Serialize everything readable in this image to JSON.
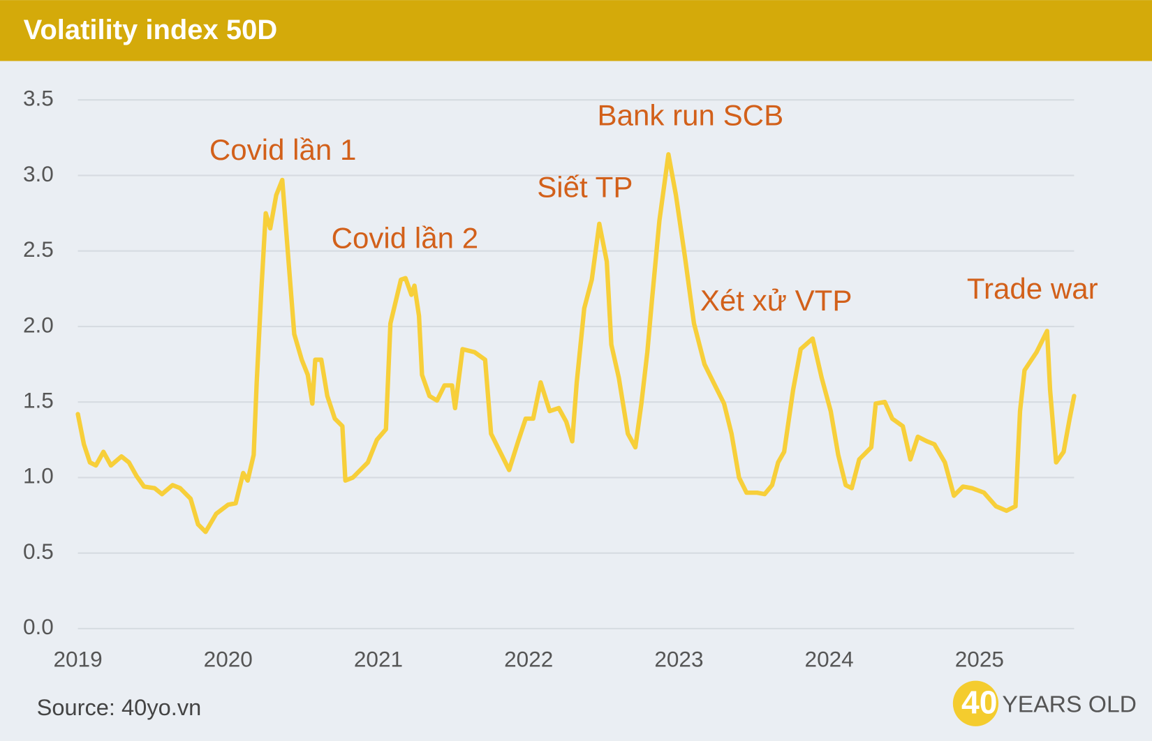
{
  "chart_data": {
    "type": "line",
    "title": "Volatility index 50D",
    "source": "Source: 40yo.vn",
    "logo": {
      "number": "40",
      "text": "YEARS OLD"
    },
    "color": "#f7cf3a",
    "grid": true,
    "annotations": [
      "Covid lần 1",
      "Covid lần 2",
      "Siết TP",
      "Bank run SCB",
      "Xét xử VTP",
      "Trade war"
    ],
    "xlim": [
      2019,
      2025.63
    ],
    "xticks": [
      2019,
      2020,
      2021,
      2022,
      2023,
      2024,
      2025
    ],
    "ylim": [
      0,
      3.5
    ],
    "yticks": [
      {
        "value": 0,
        "label": "0.0"
      },
      0.5,
      {
        "value": 1,
        "label": "1.0"
      },
      1.5,
      {
        "value": 2,
        "label": "2.0"
      },
      2.5,
      {
        "value": 3,
        "label": "3.0"
      },
      3.5
    ],
    "x": [
      2019.0,
      2019.04,
      2019.08,
      2019.12,
      2019.17,
      2019.22,
      2019.29,
      2019.34,
      2019.39,
      2019.44,
      2019.51,
      2019.56,
      2019.63,
      2019.68,
      2019.75,
      2019.8,
      2019.85,
      2019.92,
      2020.0,
      2020.05,
      2020.1,
      2020.13,
      2020.17,
      2020.19,
      2020.22,
      2020.25,
      2020.28,
      2020.32,
      2020.36,
      2020.4,
      2020.44,
      2020.49,
      2020.53,
      2020.56,
      2020.58,
      2020.62,
      2020.66,
      2020.71,
      2020.76,
      2020.78,
      2020.83,
      2020.88,
      2020.93,
      2020.99,
      2021.05,
      2021.08,
      2021.15,
      2021.18,
      2021.22,
      2021.24,
      2021.27,
      2021.29,
      2021.34,
      2021.39,
      2021.44,
      2021.49,
      2021.51,
      2021.56,
      2021.64,
      2021.71,
      2021.75,
      2021.81,
      2021.87,
      2021.93,
      2021.98,
      2022.03,
      2022.08,
      2022.14,
      2022.2,
      2022.25,
      2022.29,
      2022.32,
      2022.37,
      2022.42,
      2022.47,
      2022.52,
      2022.55,
      2022.6,
      2022.66,
      2022.71,
      2022.75,
      2022.79,
      2022.82,
      2022.87,
      2022.93,
      2022.98,
      2023.04,
      2023.1,
      2023.17,
      2023.23,
      2023.3,
      2023.35,
      2023.4,
      2023.45,
      2023.52,
      2023.57,
      2023.62,
      2023.66,
      2023.7,
      2023.76,
      2023.81,
      2023.89,
      2023.95,
      2024.01,
      2024.06,
      2024.11,
      2024.15,
      2024.2,
      2024.28,
      2024.31,
      2024.37,
      2024.42,
      2024.49,
      2024.54,
      2024.59,
      2024.65,
      2024.7,
      2024.77,
      2024.83,
      2024.89,
      2024.95,
      2025.03,
      2025.11,
      2025.18,
      2025.24,
      2025.27,
      2025.3,
      2025.38,
      2025.45,
      2025.47,
      2025.51,
      2025.56,
      2025.6,
      2025.63
    ],
    "values": [
      1.42,
      1.22,
      1.1,
      1.08,
      1.17,
      1.08,
      1.14,
      1.1,
      1.01,
      0.94,
      0.93,
      0.89,
      0.95,
      0.93,
      0.86,
      0.69,
      0.64,
      0.76,
      0.82,
      0.83,
      1.03,
      0.98,
      1.15,
      1.63,
      2.22,
      2.75,
      2.65,
      2.87,
      2.97,
      2.46,
      1.95,
      1.78,
      1.68,
      1.49,
      1.78,
      1.78,
      1.54,
      1.39,
      1.34,
      0.98,
      1.0,
      1.05,
      1.1,
      1.25,
      1.32,
      2.02,
      2.31,
      2.32,
      2.21,
      2.27,
      2.07,
      1.68,
      1.54,
      1.51,
      1.61,
      1.61,
      1.46,
      1.85,
      1.83,
      1.78,
      1.29,
      1.17,
      1.05,
      1.24,
      1.39,
      1.39,
      1.63,
      1.44,
      1.46,
      1.37,
      1.24,
      1.63,
      2.12,
      2.31,
      2.68,
      2.43,
      1.88,
      1.66,
      1.29,
      1.2,
      1.49,
      1.83,
      2.17,
      2.7,
      3.14,
      2.87,
      2.46,
      2.02,
      1.75,
      1.63,
      1.49,
      1.29,
      1.0,
      0.9,
      0.9,
      0.89,
      0.95,
      1.1,
      1.17,
      1.58,
      1.85,
      1.92,
      1.66,
      1.44,
      1.15,
      0.95,
      0.93,
      1.12,
      1.2,
      1.49,
      1.5,
      1.39,
      1.34,
      1.12,
      1.27,
      1.24,
      1.22,
      1.1,
      0.88,
      0.94,
      0.93,
      0.9,
      0.81,
      0.78,
      0.81,
      1.44,
      1.71,
      1.83,
      1.97,
      1.58,
      1.1,
      1.17,
      1.39,
      1.54
    ]
  }
}
